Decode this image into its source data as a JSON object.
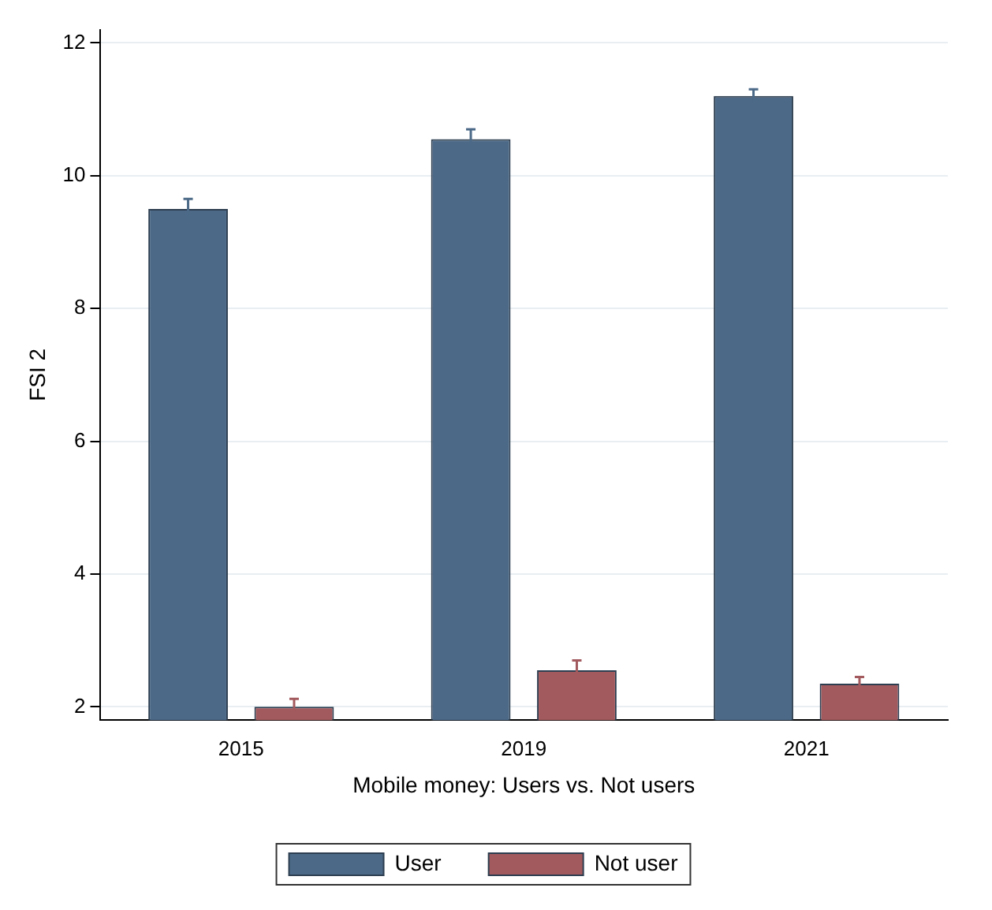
{
  "chart_data": {
    "type": "bar",
    "xlabel": "Mobile money: Users vs. Not users",
    "ylabel": "FSI 2",
    "categories": [
      "2015",
      "2019",
      "2021"
    ],
    "series": [
      {
        "name": "User",
        "color": "#4c6a88",
        "values": [
          9.5,
          10.55,
          11.2
        ],
        "errors": [
          0.15,
          0.15,
          0.1
        ]
      },
      {
        "name": "Not user",
        "color": "#a35a5e",
        "values": [
          2.0,
          2.55,
          2.35
        ],
        "errors": [
          0.12,
          0.15,
          0.1
        ]
      }
    ],
    "ylim": [
      1.8,
      12.2
    ],
    "yticks": [
      2,
      4,
      6,
      8,
      10,
      12
    ],
    "grid": "y",
    "legend": "bottom"
  }
}
